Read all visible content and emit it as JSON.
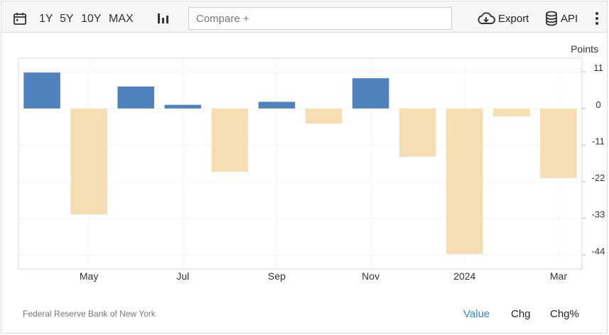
{
  "toolbar": {
    "ranges": [
      "1Y",
      "5Y",
      "10Y",
      "MAX"
    ],
    "compare_placeholder": "Compare +",
    "export_label": "Export",
    "api_label": "API"
  },
  "footer": {
    "source": "Federal Reserve Bank of New York",
    "views": [
      "Value",
      "Chg",
      "Chg%"
    ],
    "active_view": "Value"
  },
  "colors": {
    "positive": "#4f81bd",
    "negative": "#f5deb3",
    "active_view": "#2f86d6"
  },
  "chart_data": {
    "type": "bar",
    "ylabel": "Points",
    "categories": [
      "2023-04",
      "2023-05",
      "2023-06",
      "2023-07",
      "2023-08",
      "2023-09",
      "2023-10",
      "2023-11",
      "2023-12",
      "2024-01",
      "2024-02",
      "2024-03"
    ],
    "values": [
      10.8,
      -31.8,
      6.6,
      1.1,
      -19.0,
      2.0,
      -4.6,
      9.1,
      -14.5,
      -43.7,
      -2.4,
      -20.9
    ],
    "x_tick_labels": [
      "May",
      "Jul",
      "Sep",
      "Nov",
      "2024",
      "Mar"
    ],
    "x_tick_categories": [
      "2023-05",
      "2023-07",
      "2023-09",
      "2023-11",
      "2024-01",
      "2024-03"
    ],
    "y_ticks": [
      11,
      0,
      -11,
      -22,
      -33,
      -44
    ],
    "ylim": [
      -48.2,
      15.1
    ],
    "grid": true,
    "y_axis_side": "right"
  }
}
